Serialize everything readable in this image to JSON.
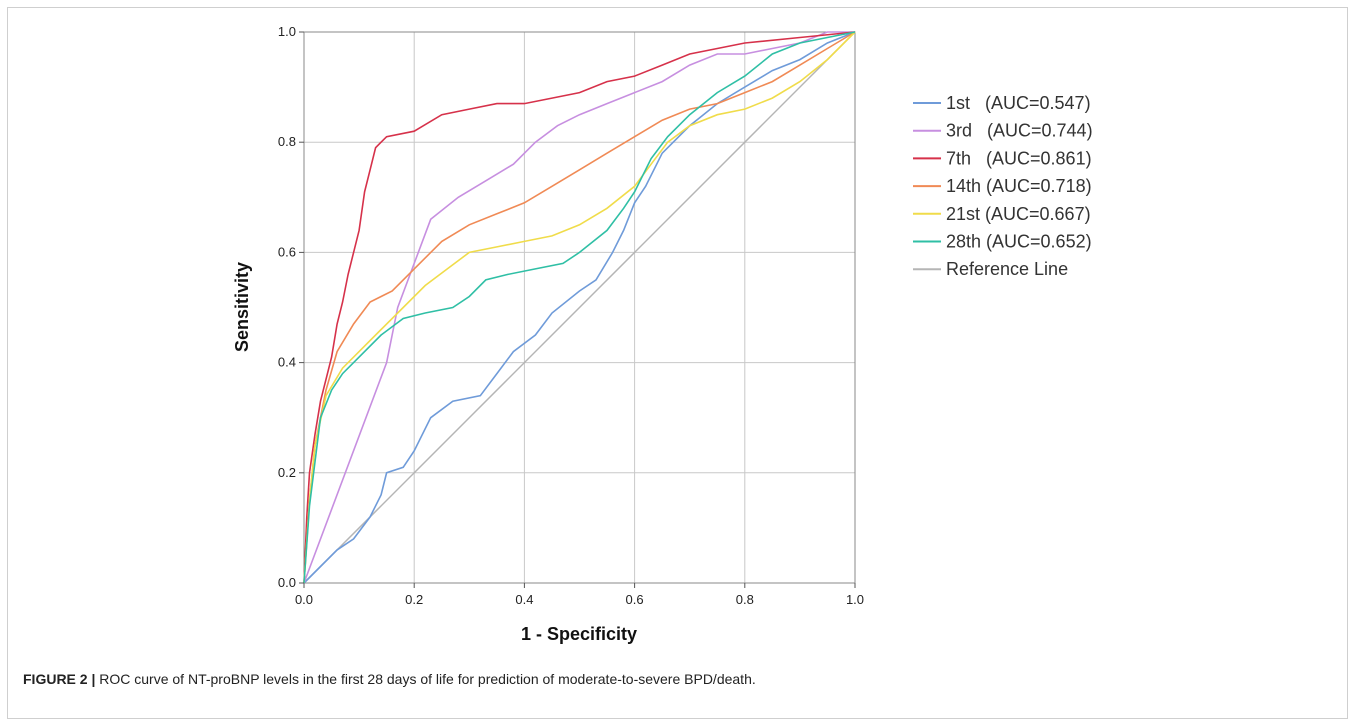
{
  "caption": {
    "label": "FIGURE 2 |",
    "text": " ROC curve of NT-proBNP levels in the first 28 days of life for prediction of moderate-to-severe BPD/death."
  },
  "chart_data": {
    "type": "line",
    "title": "",
    "xlabel": "1 - Specificity",
    "ylabel": "Sensitivity",
    "xlim": [
      0,
      1
    ],
    "ylim": [
      0,
      1
    ],
    "x_ticks": [
      "0.0",
      "0.2",
      "0.4",
      "0.6",
      "0.8",
      "1.0"
    ],
    "y_ticks": [
      "0.0",
      "0.2",
      "0.4",
      "0.6",
      "0.8",
      "1.0"
    ],
    "grid": true,
    "legend_position": "right",
    "series": [
      {
        "name": "1st   (AUC=0.547)",
        "color": "#6f9bd9",
        "points": [
          [
            0,
            0
          ],
          [
            0.03,
            0.03
          ],
          [
            0.06,
            0.06
          ],
          [
            0.09,
            0.08
          ],
          [
            0.12,
            0.12
          ],
          [
            0.14,
            0.16
          ],
          [
            0.15,
            0.2
          ],
          [
            0.18,
            0.21
          ],
          [
            0.2,
            0.24
          ],
          [
            0.23,
            0.3
          ],
          [
            0.27,
            0.33
          ],
          [
            0.32,
            0.34
          ],
          [
            0.35,
            0.38
          ],
          [
            0.38,
            0.42
          ],
          [
            0.42,
            0.45
          ],
          [
            0.45,
            0.49
          ],
          [
            0.5,
            0.53
          ],
          [
            0.53,
            0.55
          ],
          [
            0.56,
            0.6
          ],
          [
            0.58,
            0.64
          ],
          [
            0.6,
            0.69
          ],
          [
            0.62,
            0.72
          ],
          [
            0.65,
            0.78
          ],
          [
            0.7,
            0.83
          ],
          [
            0.75,
            0.87
          ],
          [
            0.8,
            0.9
          ],
          [
            0.85,
            0.93
          ],
          [
            0.9,
            0.95
          ],
          [
            0.95,
            0.98
          ],
          [
            1,
            1
          ]
        ]
      },
      {
        "name": "3rd   (AUC=0.744)",
        "color": "#c78fe0",
        "points": [
          [
            0,
            0
          ],
          [
            0.15,
            0.4
          ],
          [
            0.17,
            0.5
          ],
          [
            0.2,
            0.58
          ],
          [
            0.23,
            0.66
          ],
          [
            0.28,
            0.7
          ],
          [
            0.33,
            0.73
          ],
          [
            0.38,
            0.76
          ],
          [
            0.42,
            0.8
          ],
          [
            0.46,
            0.83
          ],
          [
            0.5,
            0.85
          ],
          [
            0.55,
            0.87
          ],
          [
            0.6,
            0.89
          ],
          [
            0.65,
            0.91
          ],
          [
            0.7,
            0.94
          ],
          [
            0.75,
            0.96
          ],
          [
            0.8,
            0.96
          ],
          [
            0.85,
            0.97
          ],
          [
            0.9,
            0.98
          ],
          [
            0.95,
            1
          ],
          [
            1,
            1
          ]
        ]
      },
      {
        "name": "7th   (AUC=0.861)",
        "color": "#d6314a",
        "points": [
          [
            0,
            0
          ],
          [
            0.005,
            0.12
          ],
          [
            0.01,
            0.2
          ],
          [
            0.02,
            0.27
          ],
          [
            0.03,
            0.33
          ],
          [
            0.05,
            0.41
          ],
          [
            0.06,
            0.47
          ],
          [
            0.07,
            0.51
          ],
          [
            0.08,
            0.56
          ],
          [
            0.09,
            0.6
          ],
          [
            0.1,
            0.64
          ],
          [
            0.11,
            0.71
          ],
          [
            0.12,
            0.75
          ],
          [
            0.13,
            0.79
          ],
          [
            0.15,
            0.81
          ],
          [
            0.2,
            0.82
          ],
          [
            0.25,
            0.85
          ],
          [
            0.3,
            0.86
          ],
          [
            0.35,
            0.87
          ],
          [
            0.4,
            0.87
          ],
          [
            0.45,
            0.88
          ],
          [
            0.5,
            0.89
          ],
          [
            0.55,
            0.91
          ],
          [
            0.6,
            0.92
          ],
          [
            0.65,
            0.94
          ],
          [
            0.7,
            0.96
          ],
          [
            0.75,
            0.97
          ],
          [
            0.8,
            0.98
          ],
          [
            0.9,
            0.99
          ],
          [
            1,
            1
          ]
        ]
      },
      {
        "name": "14th (AUC=0.718)",
        "color": "#f08a55",
        "points": [
          [
            0,
            0
          ],
          [
            0.01,
            0.15
          ],
          [
            0.02,
            0.25
          ],
          [
            0.04,
            0.35
          ],
          [
            0.06,
            0.42
          ],
          [
            0.09,
            0.47
          ],
          [
            0.12,
            0.51
          ],
          [
            0.16,
            0.53
          ],
          [
            0.2,
            0.57
          ],
          [
            0.25,
            0.62
          ],
          [
            0.3,
            0.65
          ],
          [
            0.35,
            0.67
          ],
          [
            0.4,
            0.69
          ],
          [
            0.45,
            0.72
          ],
          [
            0.5,
            0.75
          ],
          [
            0.55,
            0.78
          ],
          [
            0.6,
            0.81
          ],
          [
            0.65,
            0.84
          ],
          [
            0.7,
            0.86
          ],
          [
            0.75,
            0.87
          ],
          [
            0.8,
            0.89
          ],
          [
            0.85,
            0.91
          ],
          [
            0.9,
            0.94
          ],
          [
            0.95,
            0.97
          ],
          [
            1,
            1
          ]
        ]
      },
      {
        "name": "21st (AUC=0.667)",
        "color": "#f0dc4a",
        "points": [
          [
            0,
            0
          ],
          [
            0.01,
            0.15
          ],
          [
            0.02,
            0.25
          ],
          [
            0.04,
            0.34
          ],
          [
            0.07,
            0.39
          ],
          [
            0.1,
            0.42
          ],
          [
            0.14,
            0.46
          ],
          [
            0.18,
            0.5
          ],
          [
            0.22,
            0.54
          ],
          [
            0.26,
            0.57
          ],
          [
            0.3,
            0.6
          ],
          [
            0.35,
            0.61
          ],
          [
            0.4,
            0.62
          ],
          [
            0.45,
            0.63
          ],
          [
            0.5,
            0.65
          ],
          [
            0.55,
            0.68
          ],
          [
            0.6,
            0.72
          ],
          [
            0.63,
            0.76
          ],
          [
            0.66,
            0.8
          ],
          [
            0.7,
            0.83
          ],
          [
            0.75,
            0.85
          ],
          [
            0.8,
            0.86
          ],
          [
            0.85,
            0.88
          ],
          [
            0.9,
            0.91
          ],
          [
            0.95,
            0.95
          ],
          [
            1,
            1
          ]
        ]
      },
      {
        "name": "28th (AUC=0.652)",
        "color": "#2fbfa5",
        "points": [
          [
            0,
            0
          ],
          [
            0.01,
            0.14
          ],
          [
            0.02,
            0.22
          ],
          [
            0.03,
            0.3
          ],
          [
            0.05,
            0.35
          ],
          [
            0.07,
            0.38
          ],
          [
            0.1,
            0.41
          ],
          [
            0.14,
            0.45
          ],
          [
            0.18,
            0.48
          ],
          [
            0.22,
            0.49
          ],
          [
            0.27,
            0.5
          ],
          [
            0.3,
            0.52
          ],
          [
            0.33,
            0.55
          ],
          [
            0.37,
            0.56
          ],
          [
            0.42,
            0.57
          ],
          [
            0.47,
            0.58
          ],
          [
            0.5,
            0.6
          ],
          [
            0.55,
            0.64
          ],
          [
            0.58,
            0.68
          ],
          [
            0.6,
            0.71
          ],
          [
            0.63,
            0.77
          ],
          [
            0.66,
            0.81
          ],
          [
            0.7,
            0.85
          ],
          [
            0.75,
            0.89
          ],
          [
            0.8,
            0.92
          ],
          [
            0.85,
            0.96
          ],
          [
            0.9,
            0.98
          ],
          [
            0.95,
            0.99
          ],
          [
            1,
            1
          ]
        ]
      },
      {
        "name": "Reference Line",
        "color": "#b5b5b5",
        "points": [
          [
            0,
            0
          ],
          [
            1,
            1
          ]
        ]
      }
    ]
  }
}
